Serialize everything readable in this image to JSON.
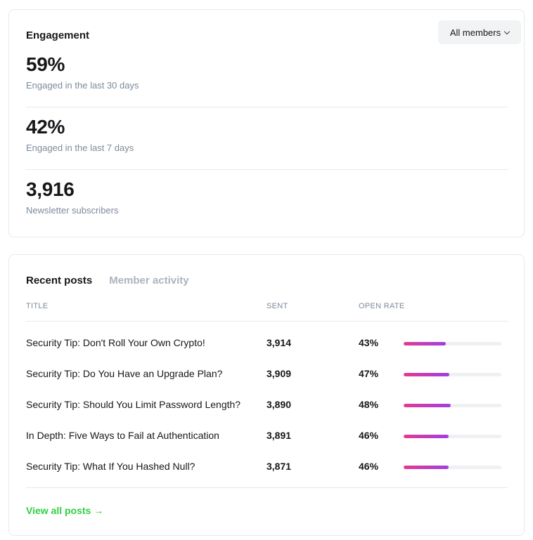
{
  "engagement": {
    "title": "Engagement",
    "filter_label": "All members",
    "metrics": [
      {
        "value": "59%",
        "label": "Engaged in the last 30 days"
      },
      {
        "value": "42%",
        "label": "Engaged in the last 7 days"
      },
      {
        "value": "3,916",
        "label": "Newsletter subscribers"
      }
    ]
  },
  "posts": {
    "tabs": [
      {
        "label": "Recent posts",
        "active": true
      },
      {
        "label": "Member activity",
        "active": false
      }
    ],
    "columns": {
      "title": "TITLE",
      "sent": "SENT",
      "open_rate": "OPEN RATE"
    },
    "rows": [
      {
        "title": "Security Tip: Don't Roll Your Own Crypto!",
        "sent": "3,914",
        "open_rate": "43%",
        "rate": 0.43
      },
      {
        "title": "Security Tip: Do You Have an Upgrade Plan?",
        "sent": "3,909",
        "open_rate": "47%",
        "rate": 0.47
      },
      {
        "title": "Security Tip: Should You Limit Password Length?",
        "sent": "3,890",
        "open_rate": "48%",
        "rate": 0.48
      },
      {
        "title": "In Depth: Five Ways to Fail at Authentication",
        "sent": "3,891",
        "open_rate": "46%",
        "rate": 0.46
      },
      {
        "title": "Security Tip: What If You Hashed Null?",
        "sent": "3,871",
        "open_rate": "46%",
        "rate": 0.46
      }
    ],
    "view_all_label": "View all posts →"
  },
  "colors": {
    "accent_green": "#30cf43",
    "bar_gradient_start": "#e5398f",
    "bar_gradient_end": "#9e40e3",
    "bar_track": "#eef0f2"
  },
  "icons": {
    "filter_dropdown": "chevron-down-icon"
  }
}
